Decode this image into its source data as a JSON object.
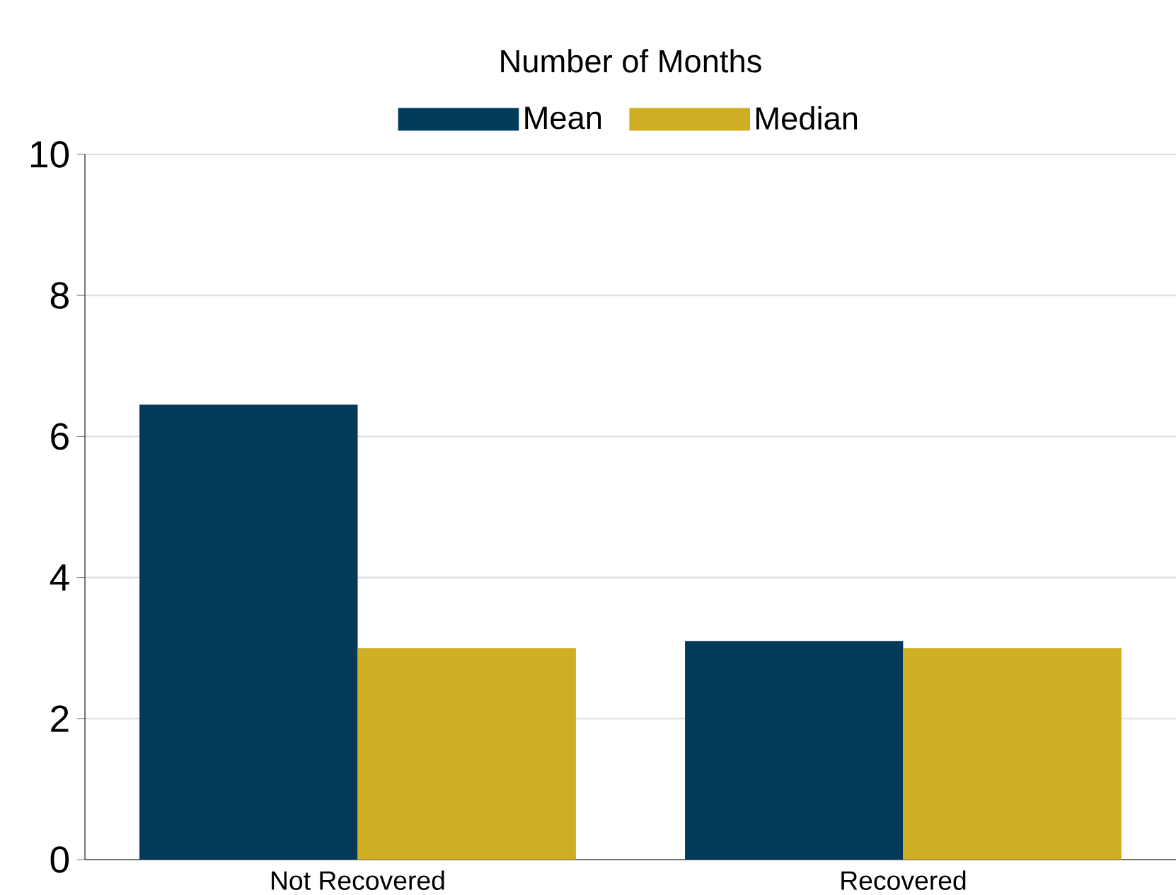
{
  "chart_data": {
    "type": "bar",
    "title": "Number of Months",
    "categories": [
      "Not Recovered",
      "Recovered"
    ],
    "series": [
      {
        "name": "Mean",
        "color": "#023a5a",
        "values": [
          6.45,
          3.1
        ]
      },
      {
        "name": "Median",
        "color": "#cfae24",
        "values": [
          3,
          3
        ]
      }
    ],
    "ylim": [
      0,
      10
    ],
    "yticks": [
      0,
      2,
      4,
      6,
      8,
      10
    ],
    "grid": "y",
    "legend": "top"
  }
}
